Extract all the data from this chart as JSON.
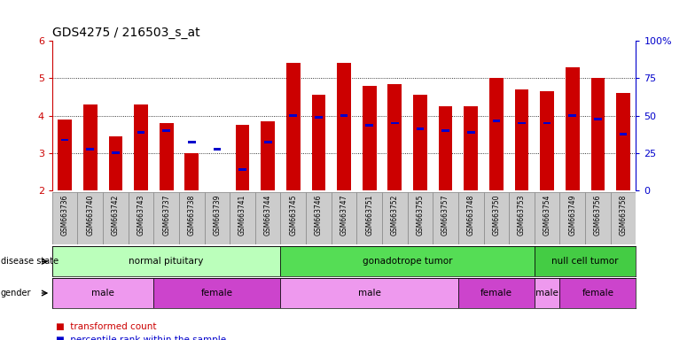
{
  "title": "GDS4275 / 216503_s_at",
  "samples": [
    "GSM663736",
    "GSM663740",
    "GSM663742",
    "GSM663743",
    "GSM663737",
    "GSM663738",
    "GSM663739",
    "GSM663741",
    "GSM663744",
    "GSM663745",
    "GSM663746",
    "GSM663747",
    "GSM663751",
    "GSM663752",
    "GSM663755",
    "GSM663757",
    "GSM663748",
    "GSM663750",
    "GSM663753",
    "GSM663754",
    "GSM663749",
    "GSM663756",
    "GSM663758"
  ],
  "red_values": [
    3.9,
    4.3,
    3.45,
    4.3,
    3.8,
    3.0,
    2.0,
    3.75,
    3.85,
    5.4,
    4.55,
    5.4,
    4.8,
    4.85,
    4.55,
    4.25,
    4.25,
    5.0,
    4.7,
    4.65,
    5.3,
    5.0,
    4.6
  ],
  "blue_values": [
    3.35,
    3.1,
    3.0,
    3.55,
    3.6,
    3.3,
    3.1,
    2.55,
    3.3,
    4.0,
    3.95,
    4.0,
    3.75,
    3.8,
    3.65,
    3.6,
    3.55,
    3.85,
    3.8,
    3.8,
    4.0,
    3.9,
    3.5
  ],
  "ylim": [
    2.0,
    6.0
  ],
  "yticks_left": [
    2,
    3,
    4,
    5,
    6
  ],
  "yticks_right": [
    0,
    25,
    50,
    75,
    100
  ],
  "disease_state_groups": [
    {
      "label": "normal pituitary",
      "start": 0,
      "end": 9,
      "color": "#bbffbb"
    },
    {
      "label": "gonadotrope tumor",
      "start": 9,
      "end": 19,
      "color": "#55dd55"
    },
    {
      "label": "null cell tumor",
      "start": 19,
      "end": 23,
      "color": "#44cc44"
    }
  ],
  "gender_groups": [
    {
      "label": "male",
      "start": 0,
      "end": 4,
      "color": "#ee99ee"
    },
    {
      "label": "female",
      "start": 4,
      "end": 9,
      "color": "#cc44cc"
    },
    {
      "label": "male",
      "start": 9,
      "end": 16,
      "color": "#ee99ee"
    },
    {
      "label": "female",
      "start": 16,
      "end": 19,
      "color": "#cc44cc"
    },
    {
      "label": "male",
      "start": 19,
      "end": 20,
      "color": "#ee99ee"
    },
    {
      "label": "female",
      "start": 20,
      "end": 23,
      "color": "#cc44cc"
    }
  ],
  "bar_width": 0.55,
  "bar_color": "#cc0000",
  "dot_color": "#0000cc",
  "plot_bg": "#ffffff",
  "tick_label_bg": "#cccccc",
  "left_label_color": "#cc0000",
  "right_label_color": "#0000cc"
}
